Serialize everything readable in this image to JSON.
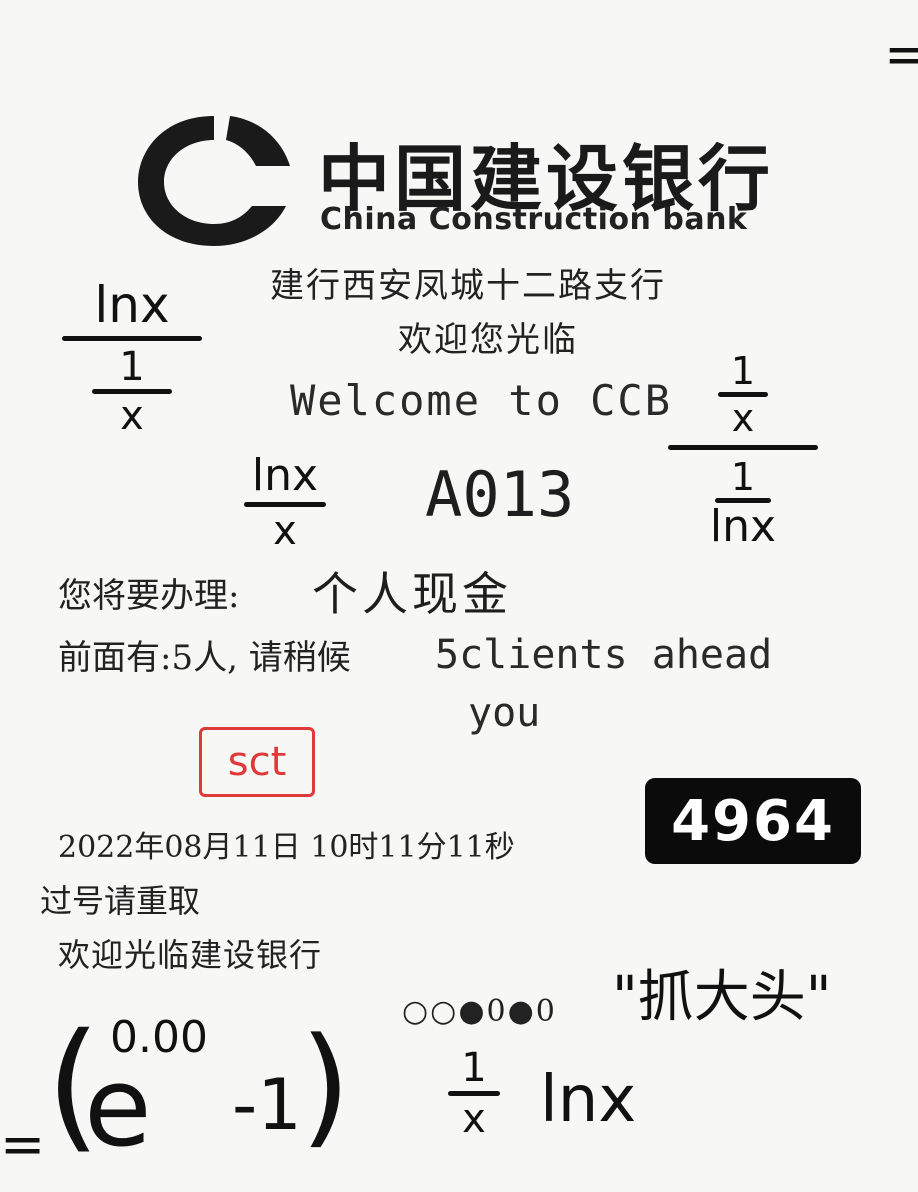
{
  "receipt": {
    "bank_name_cn": "中国建设银行",
    "bank_name_en": "China Construction bank",
    "branch": "建行西安凤城十二路支行",
    "welcome_cn": "欢迎您光临",
    "welcome_en": "Welcome to CCB",
    "ticket_number": "A013",
    "service_label": "您将要办理:",
    "service_value": "个人现金",
    "queue_label": "前面有:5人, 请稍候",
    "queue_en_line1": "5clients ahead",
    "queue_en_line2": "you",
    "timestamp": "2022年08月11日 10时11分11秒",
    "note_retake": "过号请重取",
    "note_welcome": "欢迎光临建设银行",
    "dots": "○○●0●0"
  },
  "overlays": {
    "stamp_text": "sct",
    "badge_number": "4964"
  },
  "handwriting": {
    "frac_left_num": "lnx",
    "frac_left_den_num": "1",
    "frac_left_den_den": "x",
    "frac_mid_num": "lnx",
    "frac_mid_den": "x",
    "frac_right_num_num": "1",
    "frac_right_num_den": "x",
    "frac_right_den_num": "1",
    "frac_right_den_den": "lnx",
    "quote_text": "\"抓大头\"",
    "exp_paren_open": "(",
    "exp_base": "e",
    "exp_power": "0.00",
    "exp_minus_one": "-1",
    "exp_paren_close": ")",
    "bottom_frac_num": "1",
    "bottom_frac_den": "x",
    "bottom_lnx": "lnx",
    "equals_left": "=",
    "equals_right": "="
  },
  "colors": {
    "stamp": "#e0393a",
    "badge_bg": "#0b0b0b",
    "badge_text": "#ffffff"
  }
}
